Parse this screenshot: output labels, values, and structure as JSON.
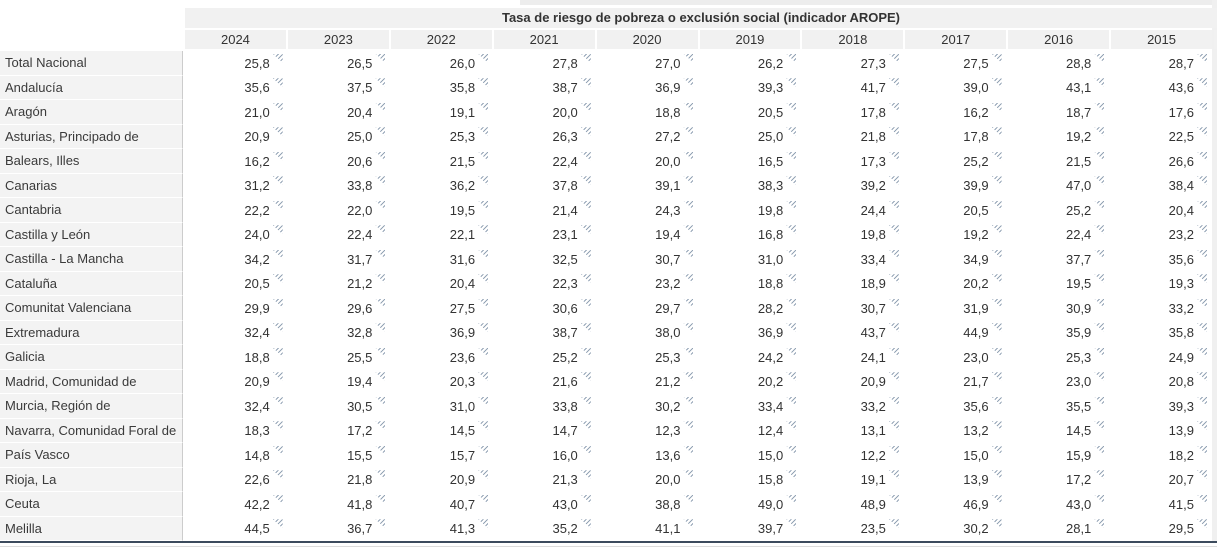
{
  "colors": {
    "header_bg": "#f1f1f1",
    "row_label_bg": "#f3f3f3",
    "text": "#333333",
    "note_marker": "#93a3b5",
    "bottom_rule": "#3c4b5d",
    "separator": "#cccccc"
  },
  "chart_data": {
    "type": "table",
    "title": "Tasa de riesgo de pobreza o exclusión social (indicador AROPE)",
    "columns": [
      "2024",
      "2023",
      "2022",
      "2021",
      "2020",
      "2019",
      "2018",
      "2017",
      "2016",
      "2015"
    ],
    "value_note_marker": "hatched-corner-note",
    "rows": [
      {
        "label": "Total Nacional",
        "values": [
          "25,8",
          "26,5",
          "26,0",
          "27,8",
          "27,0",
          "26,2",
          "27,3",
          "27,5",
          "28,8",
          "28,7"
        ]
      },
      {
        "label": "Andalucía",
        "values": [
          "35,6",
          "37,5",
          "35,8",
          "38,7",
          "36,9",
          "39,3",
          "41,7",
          "39,0",
          "43,1",
          "43,6"
        ]
      },
      {
        "label": "Aragón",
        "values": [
          "21,0",
          "20,4",
          "19,1",
          "20,0",
          "18,8",
          "20,5",
          "17,8",
          "16,2",
          "18,7",
          "17,6"
        ]
      },
      {
        "label": "Asturias, Principado de",
        "values": [
          "20,9",
          "25,0",
          "25,3",
          "26,3",
          "27,2",
          "25,0",
          "21,8",
          "17,8",
          "19,2",
          "22,5"
        ]
      },
      {
        "label": "Balears, Illes",
        "values": [
          "16,2",
          "20,6",
          "21,5",
          "22,4",
          "20,0",
          "16,5",
          "17,3",
          "25,2",
          "21,5",
          "26,6"
        ]
      },
      {
        "label": "Canarias",
        "values": [
          "31,2",
          "33,8",
          "36,2",
          "37,8",
          "39,1",
          "38,3",
          "39,2",
          "39,9",
          "47,0",
          "38,4"
        ]
      },
      {
        "label": "Cantabria",
        "values": [
          "22,2",
          "22,0",
          "19,5",
          "21,4",
          "24,3",
          "19,8",
          "24,4",
          "20,5",
          "25,2",
          "20,4"
        ]
      },
      {
        "label": "Castilla y León",
        "values": [
          "24,0",
          "22,4",
          "22,1",
          "23,1",
          "19,4",
          "16,8",
          "19,8",
          "19,2",
          "22,4",
          "23,2"
        ]
      },
      {
        "label": "Castilla - La Mancha",
        "values": [
          "34,2",
          "31,7",
          "31,6",
          "32,5",
          "30,7",
          "31,0",
          "33,4",
          "34,9",
          "37,7",
          "35,6"
        ]
      },
      {
        "label": "Cataluña",
        "values": [
          "20,5",
          "21,2",
          "20,4",
          "22,3",
          "23,2",
          "18,8",
          "18,9",
          "20,2",
          "19,5",
          "19,3"
        ]
      },
      {
        "label": "Comunitat Valenciana",
        "values": [
          "29,9",
          "29,6",
          "27,5",
          "30,6",
          "29,7",
          "28,2",
          "30,7",
          "31,9",
          "30,9",
          "33,2"
        ]
      },
      {
        "label": "Extremadura",
        "values": [
          "32,4",
          "32,8",
          "36,9",
          "38,7",
          "38,0",
          "36,9",
          "43,7",
          "44,9",
          "35,9",
          "35,8"
        ]
      },
      {
        "label": "Galicia",
        "values": [
          "18,8",
          "25,5",
          "23,6",
          "25,2",
          "25,3",
          "24,2",
          "24,1",
          "23,0",
          "25,3",
          "24,9"
        ]
      },
      {
        "label": "Madrid, Comunidad de",
        "values": [
          "20,9",
          "19,4",
          "20,3",
          "21,6",
          "21,2",
          "20,2",
          "20,9",
          "21,7",
          "23,0",
          "20,8"
        ]
      },
      {
        "label": "Murcia, Región de",
        "values": [
          "32,4",
          "30,5",
          "31,0",
          "33,8",
          "30,2",
          "33,4",
          "33,2",
          "35,6",
          "35,5",
          "39,3"
        ]
      },
      {
        "label": "Navarra, Comunidad Foral de",
        "values": [
          "18,3",
          "17,2",
          "14,5",
          "14,7",
          "12,3",
          "12,4",
          "13,1",
          "13,2",
          "14,5",
          "13,9"
        ]
      },
      {
        "label": "País Vasco",
        "values": [
          "14,8",
          "15,5",
          "15,7",
          "16,0",
          "13,6",
          "15,0",
          "12,2",
          "15,0",
          "15,9",
          "18,2"
        ]
      },
      {
        "label": "Rioja, La",
        "values": [
          "22,6",
          "21,8",
          "20,9",
          "21,3",
          "20,0",
          "15,8",
          "19,1",
          "13,9",
          "17,2",
          "20,7"
        ]
      },
      {
        "label": "Ceuta",
        "values": [
          "42,2",
          "41,8",
          "40,7",
          "43,0",
          "38,8",
          "49,0",
          "48,9",
          "46,9",
          "43,0",
          "41,5"
        ]
      },
      {
        "label": "Melilla",
        "values": [
          "44,5",
          "36,7",
          "41,3",
          "35,2",
          "41,1",
          "39,7",
          "23,5",
          "30,2",
          "28,1",
          "29,5"
        ]
      }
    ]
  }
}
